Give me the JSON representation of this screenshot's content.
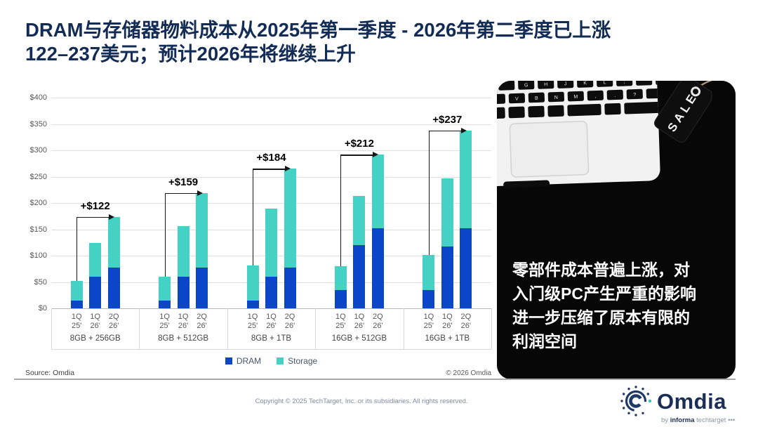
{
  "title": {
    "line1": "DRAM与存储器物料成本从2025年第一季度 - 2026年第二季度已上涨",
    "line2": "122–237美元；预计2026年将继续上升"
  },
  "chart_data": {
    "type": "bar",
    "stacked": true,
    "grid": true,
    "legend_position": "bottom",
    "ylim": [
      0,
      400
    ],
    "y_tick_labels": [
      "$0",
      "$50",
      "$100",
      "$150",
      "$200",
      "$250",
      "$300",
      "$350",
      "$400"
    ],
    "bar_quarter_labels": [
      [
        "1Q",
        "25'"
      ],
      [
        "1Q",
        "26'"
      ],
      [
        "2Q",
        "26'"
      ]
    ],
    "groups": [
      "8GB + 256GB",
      "8GB + 512GB",
      "8GB + 1TB",
      "16GB + 512GB",
      "16GB + 1TB"
    ],
    "series": [
      {
        "name": "DRAM",
        "color": "#0c46c8",
        "values_by_group": [
          [
            15,
            60,
            78
          ],
          [
            15,
            60,
            78
          ],
          [
            15,
            60,
            78
          ],
          [
            35,
            120,
            152
          ],
          [
            35,
            118,
            152
          ]
        ]
      },
      {
        "name": "Storage",
        "color": "#45d1c3",
        "values_by_group": [
          [
            37,
            64,
            96
          ],
          [
            45,
            96,
            141
          ],
          [
            66,
            129,
            187
          ],
          [
            45,
            94,
            140
          ],
          [
            66,
            129,
            186
          ]
        ]
      }
    ],
    "group_totals_1q25_to_2q26": [
      [
        52,
        174
      ],
      [
        60,
        219
      ],
      [
        81,
        265
      ],
      [
        80,
        292
      ],
      [
        101,
        338
      ]
    ],
    "annotations": [
      "+$122",
      "+$159",
      "+$184",
      "+$212",
      "+$237"
    ]
  },
  "panel": {
    "sale_tag": "SALE",
    "keyboard_row1": [
      "G",
      "H",
      "J",
      "K",
      "L",
      ";",
      "'"
    ],
    "keyboard_row2": [
      "V",
      "B",
      "N",
      "M",
      ",",
      ".",
      "?"
    ],
    "text_lines": [
      "零部件成本普遍上涨，对",
      "入门级PC产生严重的影响",
      "进一步压缩了原本有限的",
      "利润空间"
    ]
  },
  "footer": {
    "source": "Source: Omdia",
    "chart_copyright": "© 2026 Omdia",
    "page_copyright": "Copyright © 2025 TechTarget, Inc. or its subsidiaries. All rights reserved."
  },
  "logo": {
    "name": "Omdia",
    "byline_prefix": "by ",
    "byline_brand": "informa",
    "byline_suffix": " techtarget ",
    "byline_dots": "•••"
  },
  "colors": {
    "dram": "#0c46c8",
    "storage": "#45d1c3",
    "title_navy": "#132c56",
    "panel_black": "#070707"
  }
}
